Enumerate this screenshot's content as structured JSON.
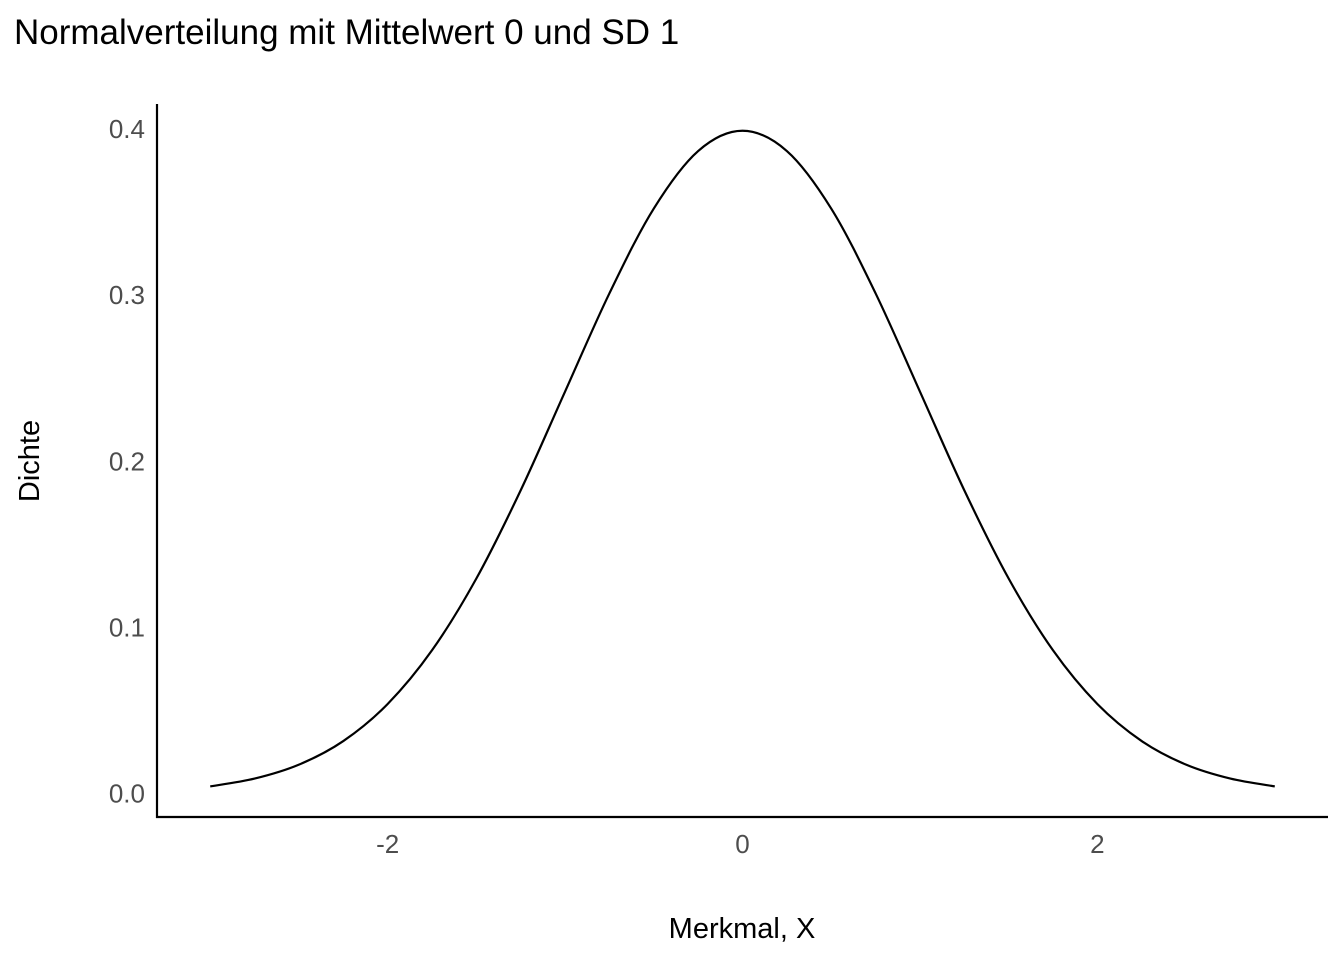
{
  "chart_data": {
    "type": "line",
    "title": "Normalverteilung mit Mittelwert 0 und SD 1",
    "xlabel": "Merkmal, X",
    "ylabel": "Dichte",
    "xlim": [
      -3.3,
      3.3
    ],
    "ylim": [
      -0.014,
      0.415
    ],
    "x_ticks": [
      -2,
      0,
      2
    ],
    "x_tick_labels": [
      "-2",
      "0",
      "2"
    ],
    "y_ticks": [
      0.0,
      0.1,
      0.2,
      0.3,
      0.4
    ],
    "y_tick_labels": [
      "0.0",
      "0.1",
      "0.2",
      "0.3",
      "0.4"
    ],
    "grid": false,
    "legend": "none",
    "line_color": "#000000",
    "series": [
      {
        "x": [
          -3.0,
          -2.75,
          -2.5,
          -2.25,
          -2.0,
          -1.75,
          -1.5,
          -1.25,
          -1.0,
          -0.75,
          -0.5,
          -0.25,
          0.0,
          0.25,
          0.5,
          0.75,
          1.0,
          1.25,
          1.5,
          1.75,
          2.0,
          2.25,
          2.5,
          2.75,
          3.0
        ],
        "y": [
          0.0044,
          0.0091,
          0.0175,
          0.0317,
          0.054,
          0.0863,
          0.1295,
          0.1826,
          0.242,
          0.3011,
          0.3521,
          0.3867,
          0.3989,
          0.3867,
          0.3521,
          0.3011,
          0.242,
          0.1826,
          0.1295,
          0.0863,
          0.054,
          0.0317,
          0.0175,
          0.0091,
          0.0044
        ]
      }
    ]
  }
}
